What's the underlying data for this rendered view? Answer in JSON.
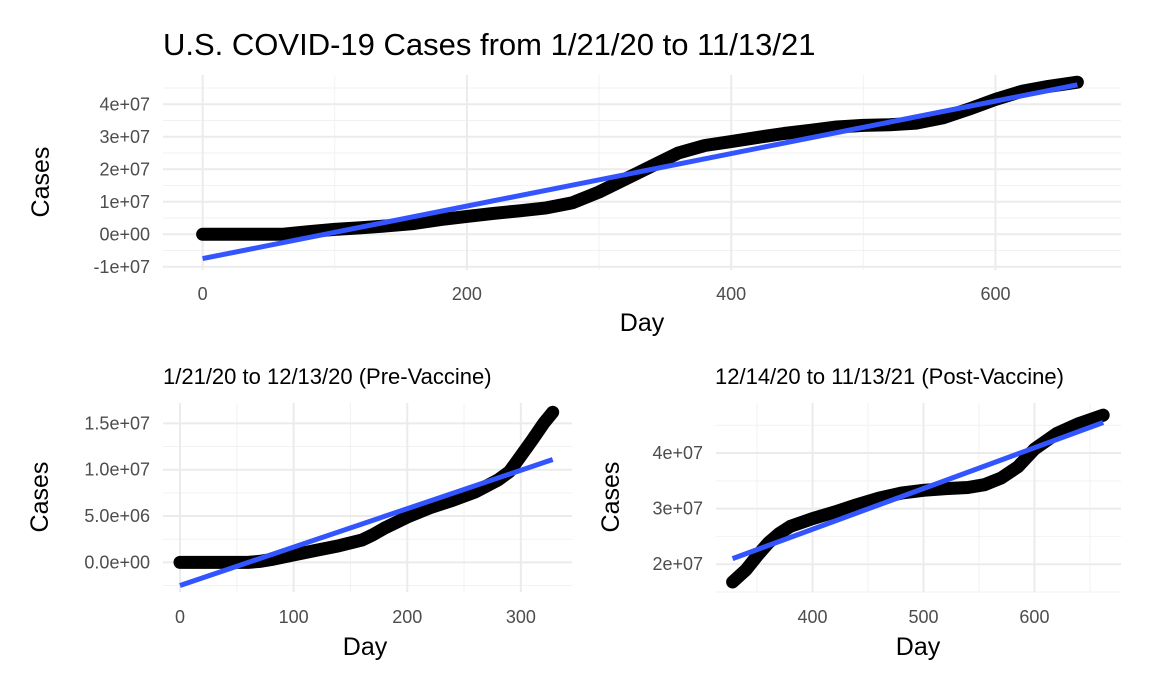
{
  "chart_data": [
    {
      "type": "line",
      "title": "U.S. COVID-19 Cases from 1/21/20 to 11/13/21",
      "xlabel": "Day",
      "ylabel": "Cases",
      "xlim": [
        -30,
        695
      ],
      "ylim": [
        -11000000,
        49000000
      ],
      "xticks": [
        0,
        200,
        400,
        600
      ],
      "xtick_labels": [
        "0",
        "200",
        "400",
        "600"
      ],
      "yticks": [
        -10000000,
        0,
        10000000,
        20000000,
        30000000,
        40000000
      ],
      "ytick_labels": [
        "-1e+07",
        "0e+00",
        "1e+07",
        "2e+07",
        "3e+07",
        "4e+07"
      ],
      "grid": true,
      "series": [
        {
          "kind": "observed",
          "x": [
            0,
            40,
            60,
            80,
            100,
            120,
            140,
            160,
            180,
            200,
            220,
            240,
            260,
            280,
            300,
            320,
            340,
            360,
            380,
            400,
            420,
            440,
            460,
            480,
            500,
            520,
            540,
            560,
            580,
            600,
            620,
            640,
            662
          ],
          "y": [
            0,
            0,
            0,
            800000,
            1500000,
            2000000,
            2600000,
            3300000,
            4500000,
            5500000,
            6400000,
            7200000,
            8100000,
            9700000,
            13000000,
            17000000,
            21000000,
            25000000,
            27300000,
            28500000,
            29800000,
            31000000,
            32000000,
            33000000,
            33500000,
            33700000,
            34200000,
            35800000,
            38500000,
            41500000,
            44000000,
            45500000,
            46800000
          ]
        },
        {
          "kind": "linear-fit",
          "x": [
            0,
            662
          ],
          "y": [
            -7500000,
            46000000
          ]
        }
      ],
      "colors": {
        "observed": "#000000",
        "fit": "#3355ff"
      }
    },
    {
      "type": "line",
      "title": "1/21/20 to 12/13/20 (Pre-Vaccine)",
      "xlabel": "Day",
      "ylabel": "Cases",
      "xlim": [
        -15,
        345
      ],
      "ylim": [
        -3200000,
        17200000
      ],
      "xticks": [
        0,
        100,
        200,
        300
      ],
      "xtick_labels": [
        "0",
        "100",
        "200",
        "300"
      ],
      "yticks": [
        0,
        5000000,
        10000000,
        15000000
      ],
      "ytick_labels": [
        "0.0e+00",
        "5.0e+06",
        "1.0e+07",
        "1.5e+07"
      ],
      "grid": true,
      "series": [
        {
          "kind": "observed",
          "x": [
            0,
            30,
            50,
            60,
            70,
            80,
            100,
            120,
            140,
            160,
            170,
            180,
            200,
            220,
            240,
            260,
            280,
            290,
            300,
            310,
            320,
            328
          ],
          "y": [
            0,
            0,
            0,
            0,
            100000,
            300000,
            800000,
            1300000,
            1800000,
            2400000,
            3000000,
            3700000,
            4900000,
            5900000,
            6700000,
            7600000,
            8900000,
            9800000,
            11500000,
            13200000,
            15000000,
            16200000
          ]
        },
        {
          "kind": "linear-fit",
          "x": [
            0,
            328
          ],
          "y": [
            -2500000,
            11100000
          ]
        }
      ],
      "colors": {
        "observed": "#000000",
        "fit": "#3355ff"
      }
    },
    {
      "type": "line",
      "title": "12/14/20 to 11/13/21 (Post-Vaccine)",
      "xlabel": "Day",
      "ylabel": "Cases",
      "xlim": [
        313,
        678
      ],
      "ylim": [
        15000000,
        49000000
      ],
      "xticks": [
        400,
        500,
        600
      ],
      "xtick_labels": [
        "400",
        "500",
        "600"
      ],
      "yticks": [
        20000000,
        30000000,
        40000000
      ],
      "ytick_labels": [
        "2e+07",
        "3e+07",
        "4e+07"
      ],
      "grid": true,
      "series": [
        {
          "kind": "observed",
          "x": [
            328,
            340,
            350,
            360,
            370,
            380,
            400,
            420,
            440,
            460,
            480,
            500,
            520,
            540,
            555,
            570,
            585,
            600,
            620,
            640,
            662
          ],
          "y": [
            16800000,
            19000000,
            21500000,
            23800000,
            25500000,
            26800000,
            28200000,
            29400000,
            30700000,
            31900000,
            32800000,
            33300000,
            33600000,
            33800000,
            34300000,
            35500000,
            37500000,
            40700000,
            43500000,
            45300000,
            46800000
          ]
        },
        {
          "kind": "linear-fit",
          "x": [
            328,
            662
          ],
          "y": [
            21000000,
            45500000
          ]
        }
      ],
      "colors": {
        "observed": "#000000",
        "fit": "#3355ff"
      }
    }
  ]
}
